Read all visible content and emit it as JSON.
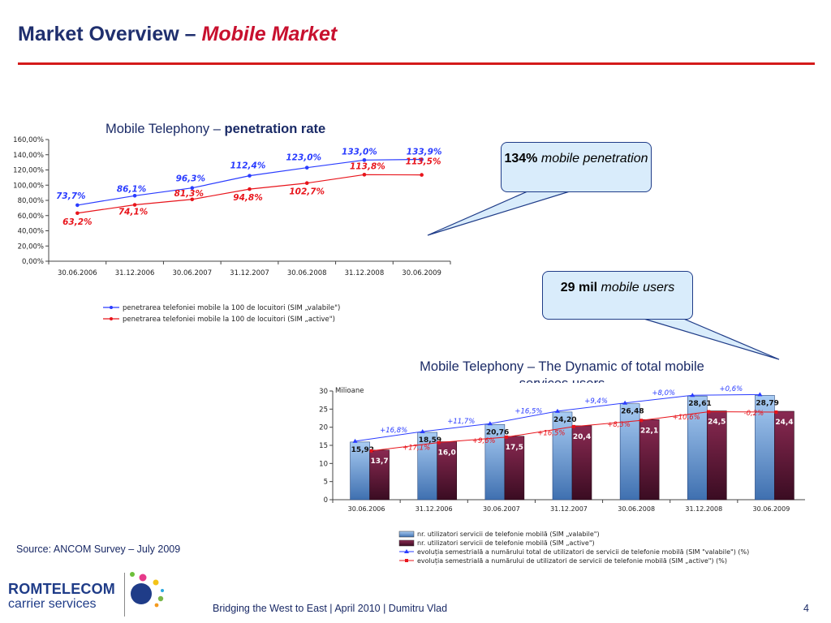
{
  "slide": {
    "title_main": "Market Overview –",
    "title_accent": "Mobile Market",
    "source": "Source: ANCOM Survey – July 2009",
    "footer": "Bridging the West to East | April 2010 | Dumitru Vlad",
    "page_number": "4"
  },
  "logo": {
    "line1": "ROMTELECOM",
    "line2": "carrier services"
  },
  "callouts": {
    "penetration": {
      "bold": "134%",
      "italic": "mobile penetration"
    },
    "users": {
      "bold": "29 mil",
      "italic": "mobile users"
    }
  },
  "chart_data": [
    {
      "type": "line",
      "title_prefix": "Mobile Telephony –",
      "title_bold": "penetration rate",
      "categories": [
        "30.06.2006",
        "31.12.2006",
        "30.06.2007",
        "31.12.2007",
        "30.06.2008",
        "31.12.2008",
        "30.06.2009"
      ],
      "ylim": [
        0,
        160
      ],
      "yticks": [
        0,
        20,
        40,
        60,
        80,
        100,
        120,
        140,
        160
      ],
      "ytick_labels": [
        "0,00%",
        "20,00%",
        "40,00%",
        "60,00%",
        "80,00%",
        "100,00%",
        "120,00%",
        "140,00%",
        "160,00%"
      ],
      "series": [
        {
          "name": "penetrarea telefoniei mobile la 100 de locuitori (SIM „valabile\")",
          "color": "#2a3cff",
          "values": [
            73.7,
            86.1,
            96.3,
            112.4,
            123.0,
            133.0,
            133.9
          ],
          "labels": [
            "73,7%",
            "86,1%",
            "96,3%",
            "112,4%",
            "123,0%",
            "133,0%",
            "133,9%"
          ]
        },
        {
          "name": "penetrarea telefoniei mobile la 100 de locuitori (SIM „active\")",
          "color": "#e8141b",
          "values": [
            63.2,
            74.1,
            81.3,
            94.8,
            102.7,
            113.8,
            113.5
          ],
          "labels": [
            "63,2%",
            "74,1%",
            "81,3%",
            "94,8%",
            "102,7%",
            "113,8%",
            "113,5%"
          ]
        }
      ],
      "grid": false,
      "legend": "bottom"
    },
    {
      "type": "bar",
      "title": "Mobile Telephony – The Dynamic of total mobile services users",
      "ylabel": "Milioane",
      "categories": [
        "30.06.2006",
        "31.12.2006",
        "30.06.2007",
        "31.12.2007",
        "30.06.2008",
        "31.12.2008",
        "30.06.2009"
      ],
      "ylim": [
        0,
        30
      ],
      "yticks": [
        0,
        5,
        10,
        15,
        20,
        25,
        30
      ],
      "series": [
        {
          "name": "nr. utilizatori servicii de telefonie mobilă (SIM „valabile\")",
          "color": "#8fb4e3",
          "values": [
            15.92,
            18.59,
            20.76,
            24.2,
            26.48,
            28.61,
            28.79
          ],
          "labels": [
            "15,92",
            "18,59",
            "20,76",
            "24,20",
            "26,48",
            "28,61",
            "28,79"
          ]
        },
        {
          "name": "nr. utilizatori servicii de telefonie mobilă (SIM „active\")",
          "color": "#6e1d3f",
          "values": [
            13.7,
            16.0,
            17.5,
            20.4,
            22.1,
            24.5,
            24.4
          ],
          "labels": [
            "13,7",
            "16,0",
            "17,5",
            "20,4",
            "22,1",
            "24,5",
            "24,4"
          ]
        }
      ],
      "growth_series": [
        {
          "name": "evoluția semestrială a numărului total de utilizatori de servicii de telefonie mobilă (SIM \"valabile\") (%)",
          "color": "#2a3cff",
          "labels": [
            "+16,8%",
            "+11,7%",
            "+16,5%",
            "+9,4%",
            "+8,0%",
            "+0,6%"
          ]
        },
        {
          "name": "evoluția semestrială a numărului de utilizatori de servicii de telefonie mobilă (SIM „active\") (%)",
          "color": "#e8141b",
          "labels": [
            "+17,1%",
            "+9,6%",
            "+16,5%",
            "+8,3%",
            "+10,6%",
            "-0,2%"
          ]
        }
      ],
      "grid": false,
      "legend": "bottom"
    }
  ]
}
